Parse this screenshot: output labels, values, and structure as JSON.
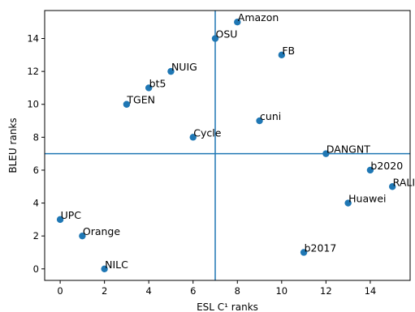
{
  "chart_data": {
    "type": "scatter",
    "xlabel": "ESL C¹ ranks",
    "ylabel": "BLEU ranks",
    "xlim": [
      -0.7,
      15.8
    ],
    "ylim": [
      -0.7,
      15.7
    ],
    "xticks": [
      0,
      2,
      4,
      6,
      8,
      10,
      12,
      14
    ],
    "yticks": [
      0,
      2,
      4,
      6,
      8,
      10,
      12,
      14
    ],
    "grid": false,
    "point_color": "#1f77b4",
    "reference_lines": {
      "x": 7,
      "y": 7,
      "color": "#1f77b4"
    },
    "points": [
      {
        "label": "Amazon",
        "x": 8,
        "y": 15
      },
      {
        "label": "OSU",
        "x": 7,
        "y": 14
      },
      {
        "label": "FB",
        "x": 10,
        "y": 13
      },
      {
        "label": "NUIG",
        "x": 5,
        "y": 12
      },
      {
        "label": "bt5",
        "x": 4,
        "y": 11
      },
      {
        "label": "TGEN",
        "x": 3,
        "y": 10
      },
      {
        "label": "cuni",
        "x": 9,
        "y": 9
      },
      {
        "label": "Cycle",
        "x": 6,
        "y": 8
      },
      {
        "label": "DANGNT",
        "x": 12,
        "y": 7
      },
      {
        "label": "b2020",
        "x": 14,
        "y": 6
      },
      {
        "label": "RALI",
        "x": 15,
        "y": 5
      },
      {
        "label": "Huawei",
        "x": 13,
        "y": 4
      },
      {
        "label": "UPC",
        "x": 0,
        "y": 3
      },
      {
        "label": "Orange",
        "x": 1,
        "y": 2
      },
      {
        "label": "b2017",
        "x": 11,
        "y": 1
      },
      {
        "label": "NILC",
        "x": 2,
        "y": 0
      }
    ]
  }
}
